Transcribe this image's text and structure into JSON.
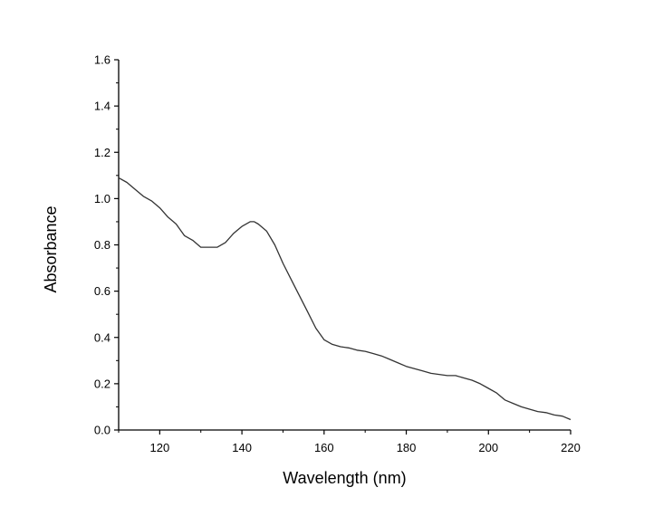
{
  "chart_data": {
    "type": "line",
    "xlabel": "Wavelength (nm)",
    "ylabel": "Absorbance",
    "xlim": [
      110,
      220
    ],
    "ylim": [
      0.0,
      1.6
    ],
    "x_ticks": [
      "120",
      "140",
      "160",
      "180",
      "200",
      "220"
    ],
    "y_ticks": [
      "0.0",
      "0.2",
      "0.4",
      "0.6",
      "0.8",
      "1.0",
      "1.2",
      "1.4",
      "1.6"
    ],
    "grid": false,
    "legend": "none",
    "line_color": "#333333",
    "series": [
      {
        "x": [
          110,
          112,
          114,
          116,
          118,
          120,
          122,
          124,
          126,
          128,
          130,
          132,
          134,
          136,
          138,
          140,
          142,
          143,
          144,
          146,
          148,
          150,
          152,
          154,
          156,
          158,
          160,
          162,
          164,
          166,
          168,
          170,
          172,
          174,
          176,
          178,
          180,
          182,
          184,
          186,
          188,
          190,
          192,
          194,
          196,
          198,
          200,
          202,
          204,
          206,
          208,
          210,
          212,
          214,
          216,
          218,
          220
        ],
        "values": [
          1.09,
          1.07,
          1.04,
          1.01,
          0.99,
          0.96,
          0.92,
          0.89,
          0.84,
          0.82,
          0.79,
          0.79,
          0.79,
          0.81,
          0.85,
          0.88,
          0.9,
          0.9,
          0.89,
          0.86,
          0.8,
          0.72,
          0.65,
          0.58,
          0.51,
          0.44,
          0.39,
          0.37,
          0.36,
          0.355,
          0.345,
          0.34,
          0.33,
          0.32,
          0.305,
          0.29,
          0.275,
          0.265,
          0.255,
          0.245,
          0.24,
          0.235,
          0.235,
          0.225,
          0.215,
          0.2,
          0.18,
          0.16,
          0.13,
          0.115,
          0.1,
          0.09,
          0.08,
          0.075,
          0.065,
          0.06,
          0.045
        ]
      }
    ]
  }
}
